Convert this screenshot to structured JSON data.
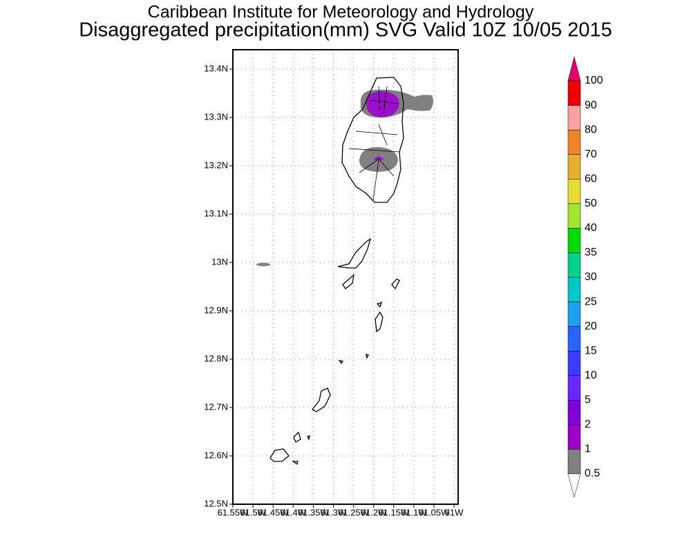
{
  "header": {
    "title": "Caribbean Institute for Meteorology and Hydrology",
    "subtitle": "Disaggregated precipitation(mm) SVG Valid 10Z 10/05 2015"
  },
  "map": {
    "lat_labels": [
      "13.4N",
      "13.3N",
      "13.2N",
      "13.1N",
      "13N",
      "12.9N",
      "12.8N",
      "12.7N",
      "12.6N",
      "12.5N"
    ],
    "lon_labels": [
      "61.55W",
      "61.5W",
      "61.45W",
      "61.4W",
      "61.35W",
      "61.3W",
      "61.25W",
      "61.2W",
      "61.15W",
      "61.1W",
      "61.05W",
      "61W"
    ]
  },
  "legend": {
    "levels": [
      "0.5",
      "1",
      "2",
      "5",
      "10",
      "15",
      "20",
      "25",
      "30",
      "35",
      "40",
      "50",
      "60",
      "70",
      "80",
      "90",
      "100"
    ],
    "band_colors": [
      "#808080",
      "#a000c8",
      "#8200dc",
      "#6a28ff",
      "#3c3cff",
      "#2864ff",
      "#1ea0f0",
      "#00c8c8",
      "#00d28c",
      "#00dc00",
      "#a0e632",
      "#e6dc32",
      "#e6af2d",
      "#f08228",
      "#faa0a0",
      "#f00000"
    ],
    "over_color": "#e6006e",
    "under_color": "#ffffff"
  }
}
